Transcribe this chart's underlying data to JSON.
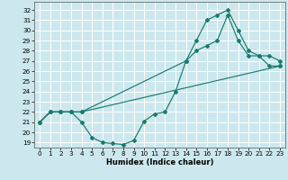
{
  "xlabel": "Humidex (Indice chaleur)",
  "xlim": [
    -0.5,
    23.5
  ],
  "ylim": [
    18.5,
    32.8
  ],
  "yticks": [
    19,
    20,
    21,
    22,
    23,
    24,
    25,
    26,
    27,
    28,
    29,
    30,
    31,
    32
  ],
  "xticks": [
    0,
    1,
    2,
    3,
    4,
    5,
    6,
    7,
    8,
    9,
    10,
    11,
    12,
    13,
    14,
    15,
    16,
    17,
    18,
    19,
    20,
    21,
    22,
    23
  ],
  "background_color": "#cce8ee",
  "grid_color": "#ffffff",
  "line_color": "#1a7a6e",
  "line1_x": [
    0,
    1,
    2,
    3,
    4,
    5,
    6,
    7,
    8,
    9,
    10,
    11,
    12,
    13,
    14,
    15,
    16,
    17,
    18,
    19,
    20,
    21,
    22,
    23
  ],
  "line1_y": [
    21,
    22,
    22,
    22,
    21,
    19.5,
    19,
    18.9,
    18.8,
    19.2,
    21.1,
    21.8,
    22,
    24,
    27,
    29,
    31,
    31.5,
    32,
    30,
    28,
    27.5,
    26.5,
    26.5
  ],
  "line2_x": [
    0,
    1,
    2,
    3,
    4,
    14,
    15,
    16,
    17,
    18,
    19,
    20,
    21,
    22,
    23
  ],
  "line2_y": [
    21,
    22,
    22,
    22,
    22,
    27,
    28,
    28.5,
    29,
    31.5,
    29,
    27.5,
    27.5,
    27.5,
    27
  ],
  "line3_x": [
    0,
    1,
    2,
    3,
    4,
    23
  ],
  "line3_y": [
    21,
    22,
    22,
    22,
    22,
    26.5
  ]
}
